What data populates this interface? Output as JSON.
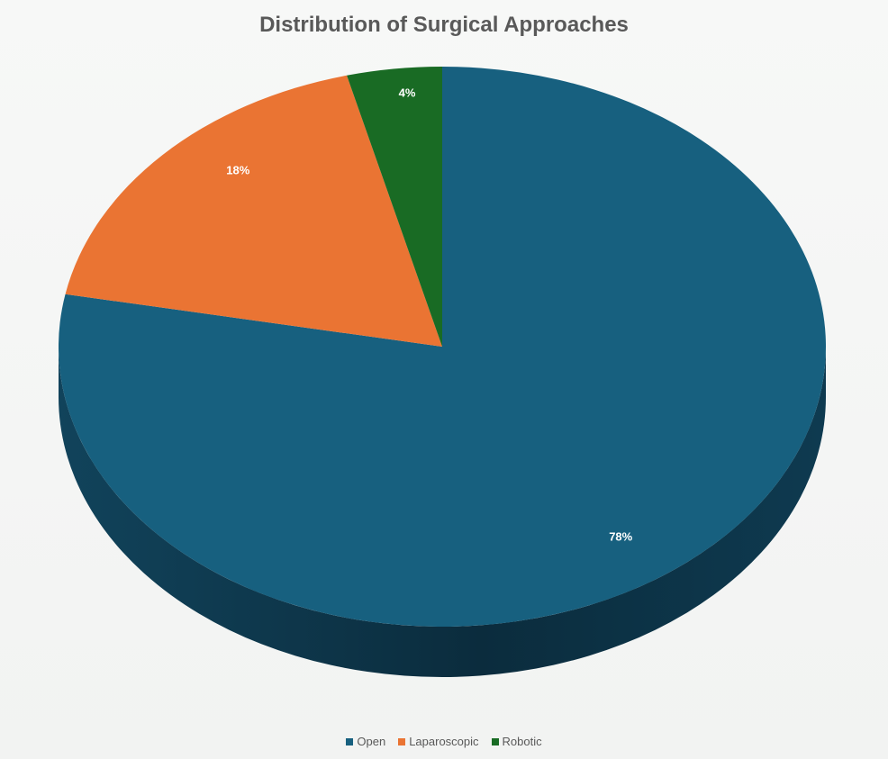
{
  "chart_data": {
    "type": "pie",
    "title": "Distribution of Surgical Approaches",
    "style": "3d-tilted",
    "legend_position": "bottom",
    "slices": [
      {
        "name": "Open",
        "value": 78,
        "label": "78%",
        "color": "#17607f"
      },
      {
        "name": "Laparoscopic",
        "value": 18,
        "label": "18%",
        "color": "#ea7433"
      },
      {
        "name": "Robotic",
        "value": 4,
        "label": "4%",
        "color": "#196b24"
      }
    ]
  }
}
